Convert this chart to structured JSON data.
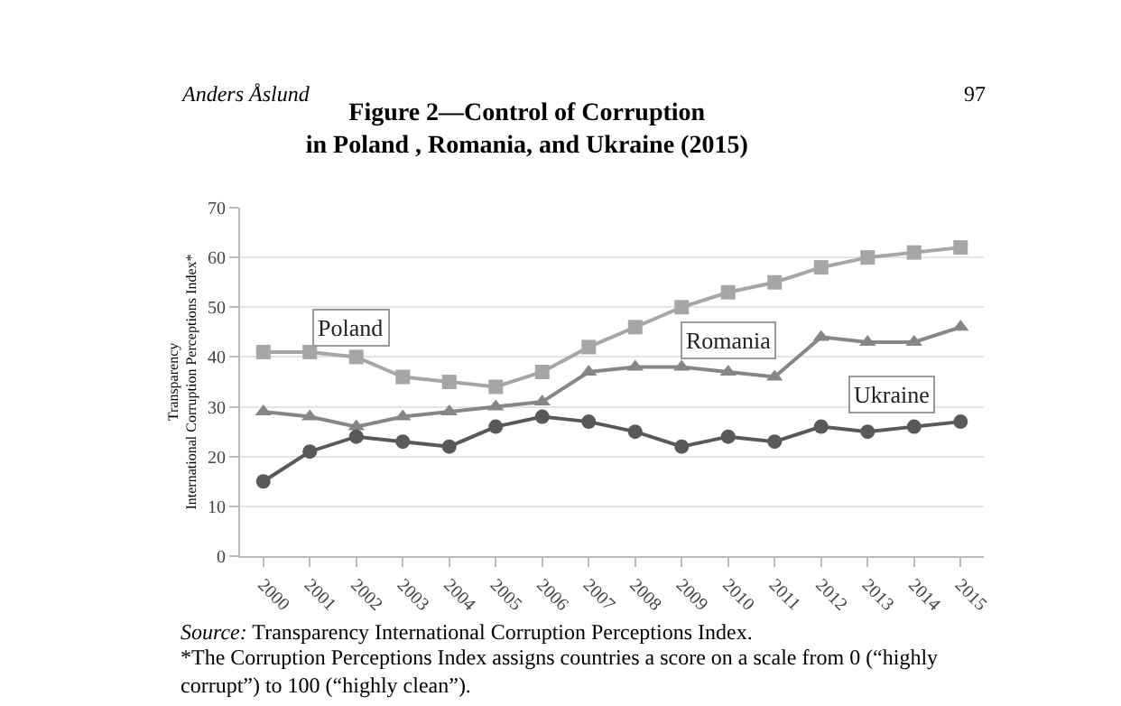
{
  "chart_data": {
    "type": "line",
    "title": "Figure 2—Control of Corruption\nin Poland , Romania, and Ukraine (2015)",
    "ylabel": "Transparency\nInternational Corruption Perceptions Index*",
    "categories": [
      "2000",
      "2001",
      "2002",
      "2003",
      "2004",
      "2005",
      "2006",
      "2007",
      "2008",
      "2009",
      "2010",
      "2011",
      "2012",
      "2013",
      "2014",
      "2015"
    ],
    "series": [
      {
        "name": "Poland",
        "color": "#a6a6a6",
        "marker": "square",
        "values": [
          41,
          41,
          40,
          36,
          35,
          34,
          37,
          42,
          46,
          50,
          53,
          55,
          58,
          60,
          61,
          62
        ]
      },
      {
        "name": "Romania",
        "color": "#868686",
        "marker": "triangle",
        "values": [
          29,
          28,
          26,
          28,
          29,
          30,
          31,
          37,
          38,
          38,
          37,
          36,
          44,
          43,
          43,
          46
        ]
      },
      {
        "name": "Ukraine",
        "color": "#595959",
        "marker": "circle",
        "values": [
          15,
          21,
          24,
          23,
          22,
          26,
          28,
          27,
          25,
          22,
          24,
          23,
          26,
          25,
          26,
          27
        ]
      }
    ],
    "ylim": [
      0,
      70
    ],
    "yticks": [
      0,
      10,
      20,
      30,
      40,
      50,
      60,
      70
    ],
    "grid": "y",
    "legend": false,
    "annotations": [
      "Anders Åslund",
      "97",
      "Source: Transparency International Corruption Perceptions Index.",
      "*The Corruption Perceptions Index assigns countries a score on a scale from 0 (“highly corrupt”) to 100 (“highly clean”)."
    ]
  }
}
